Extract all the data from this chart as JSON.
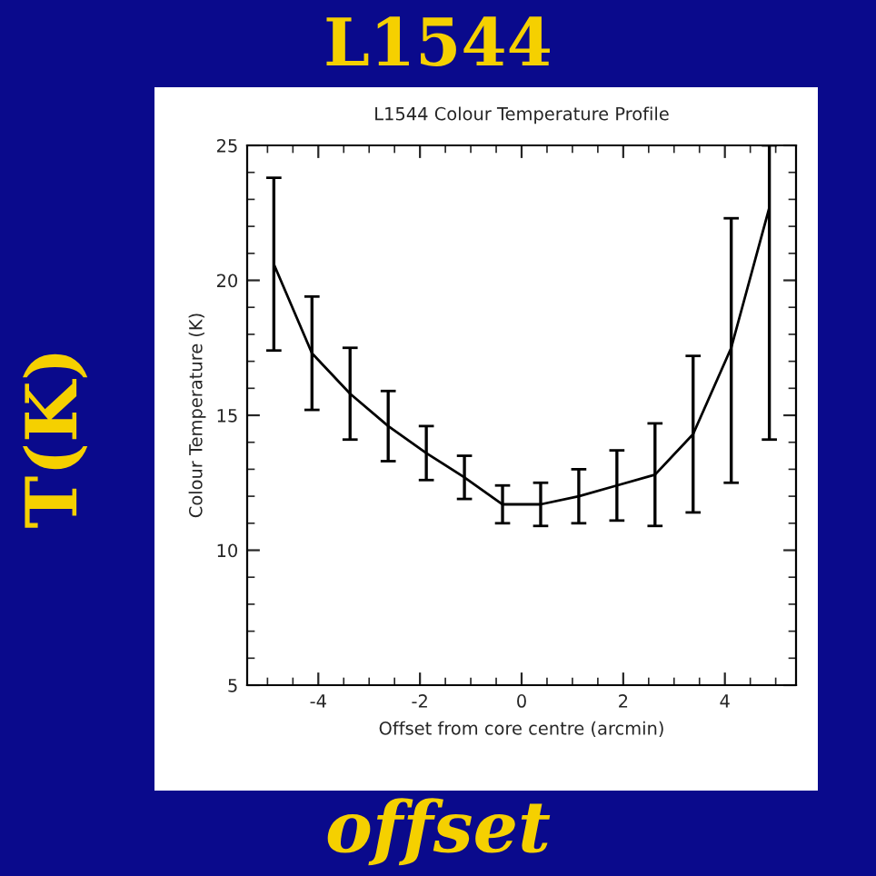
{
  "chart_data": {
    "type": "line",
    "title": "L1544",
    "subtitle": "L1544 Colour Temperature Profile",
    "xlabel": "Offset from core centre (arcmin)",
    "ylabel": "Colour Temperature (K)",
    "annotations": [
      "T(K)",
      "offset"
    ],
    "x": [
      -4.875,
      -4.125,
      -3.375,
      -2.625,
      -1.875,
      -1.125,
      -0.375,
      0.375,
      1.125,
      1.875,
      2.625,
      3.375,
      4.125,
      4.875
    ],
    "series": [
      {
        "color": "#000000",
        "values": [
          20.6,
          17.3,
          15.8,
          14.6,
          13.6,
          12.7,
          11.7,
          11.7,
          12.0,
          12.4,
          12.8,
          14.3,
          17.5,
          22.7
        ],
        "errors": [
          [
            17.4,
            23.8
          ],
          [
            15.2,
            19.4
          ],
          [
            14.1,
            17.5
          ],
          [
            13.3,
            15.9
          ],
          [
            12.6,
            14.6
          ],
          [
            11.9,
            13.5
          ],
          [
            11.0,
            12.4
          ],
          [
            10.9,
            12.5
          ],
          [
            11.0,
            13.0
          ],
          [
            11.1,
            13.7
          ],
          [
            10.9,
            14.7
          ],
          [
            11.4,
            17.2
          ],
          [
            12.5,
            22.3
          ],
          [
            14.1,
            25
          ]
        ]
      }
    ],
    "xlim": [
      -5.4,
      5.4
    ],
    "ylim": [
      5,
      25
    ],
    "xticks": [
      -4,
      -2,
      0,
      2,
      4
    ],
    "yticks": [
      5,
      10,
      15,
      20,
      25
    ],
    "grid": false,
    "marker": "none",
    "line_style": "solid"
  }
}
